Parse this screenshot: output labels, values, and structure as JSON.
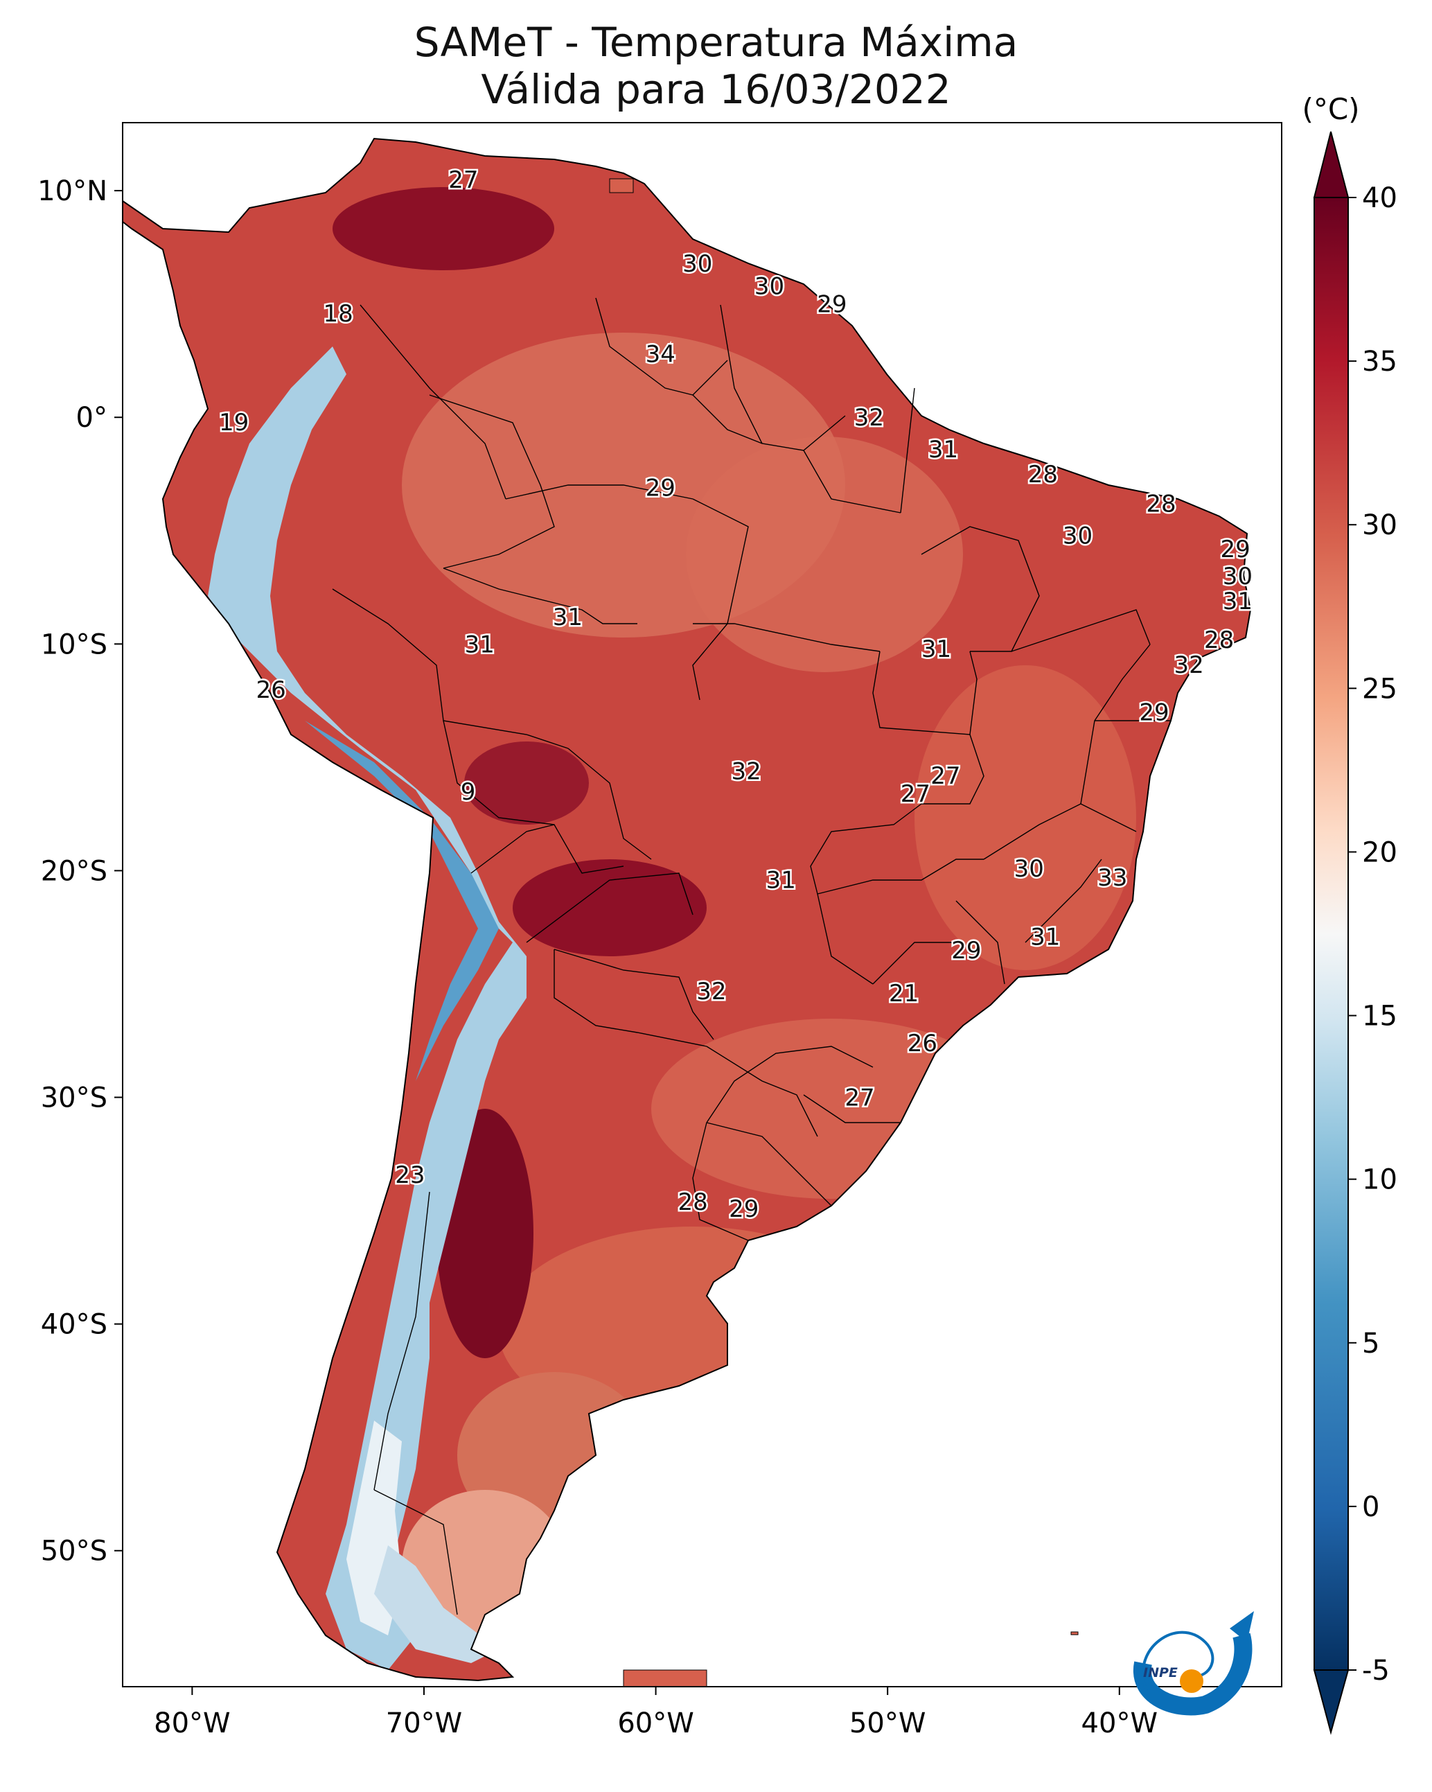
{
  "title": {
    "line1": "SAMeT - Temperatura Máxima",
    "line2": "Válida para 16/03/2022"
  },
  "axes": {
    "x_labels": [
      "80°W",
      "70°W",
      "60°W",
      "50°W",
      "40°W"
    ],
    "y_labels": [
      "10°N",
      "0°",
      "10°S",
      "20°S",
      "30°S",
      "40°S",
      "50°S"
    ]
  },
  "colorbar": {
    "unit": "(°C)",
    "ticks": [
      "40",
      "35",
      "30",
      "25",
      "20",
      "15",
      "10",
      "5",
      "0",
      "-5"
    ],
    "range": [
      -5,
      40
    ]
  },
  "logo": {
    "text": "INPE"
  },
  "colors": {
    "hot": "#67001f",
    "warm": "#c83c3c",
    "mild": "#e6806a",
    "neutral": "#f7f7f7",
    "cool": "#92c5de",
    "cold": "#053061",
    "accent_orange": "#f39200",
    "accent_blue": "#0a6fb8"
  },
  "temperature_labels": [
    {
      "value": "27",
      "lon": -68.3,
      "lat": 10.5
    },
    {
      "value": "18",
      "lon": -73.7,
      "lat": 4.6
    },
    {
      "value": "19",
      "lon": -78.2,
      "lat": -0.2
    },
    {
      "value": "30",
      "lon": -58.2,
      "lat": 6.8
    },
    {
      "value": "30",
      "lon": -55.1,
      "lat": 5.8
    },
    {
      "value": "29",
      "lon": -52.4,
      "lat": 5.0
    },
    {
      "value": "34",
      "lon": -59.8,
      "lat": 2.8
    },
    {
      "value": "32",
      "lon": -50.8,
      "lat": 0.0
    },
    {
      "value": "31",
      "lon": -47.6,
      "lat": -1.4
    },
    {
      "value": "29",
      "lon": -59.8,
      "lat": -3.1
    },
    {
      "value": "28",
      "lon": -43.3,
      "lat": -2.5
    },
    {
      "value": "28",
      "lon": -38.2,
      "lat": -3.8
    },
    {
      "value": "30",
      "lon": -41.8,
      "lat": -5.2
    },
    {
      "value": "29",
      "lon": -35.0,
      "lat": -5.8
    },
    {
      "value": "30",
      "lon": -34.9,
      "lat": -7.0
    },
    {
      "value": "31",
      "lon": -34.9,
      "lat": -8.1
    },
    {
      "value": "28",
      "lon": -35.7,
      "lat": -9.8
    },
    {
      "value": "32",
      "lon": -37.0,
      "lat": -10.9
    },
    {
      "value": "29",
      "lon": -38.5,
      "lat": -13.0
    },
    {
      "value": "31",
      "lon": -63.8,
      "lat": -8.8
    },
    {
      "value": "31",
      "lon": -67.6,
      "lat": -10.0
    },
    {
      "value": "31",
      "lon": -47.9,
      "lat": -10.2
    },
    {
      "value": "26",
      "lon": -76.6,
      "lat": -12.0
    },
    {
      "value": "27",
      "lon": -47.5,
      "lat": -15.8
    },
    {
      "value": "27",
      "lon": -48.8,
      "lat": -16.6
    },
    {
      "value": "32",
      "lon": -56.1,
      "lat": -15.6
    },
    {
      "value": "9",
      "lon": -68.1,
      "lat": -16.5
    },
    {
      "value": "30",
      "lon": -43.9,
      "lat": -19.9
    },
    {
      "value": "33",
      "lon": -40.3,
      "lat": -20.3
    },
    {
      "value": "31",
      "lon": -54.6,
      "lat": -20.4
    },
    {
      "value": "31",
      "lon": -43.2,
      "lat": -22.9
    },
    {
      "value": "29",
      "lon": -46.6,
      "lat": -23.5
    },
    {
      "value": "32",
      "lon": -57.6,
      "lat": -25.3
    },
    {
      "value": "21",
      "lon": -49.3,
      "lat": -25.4
    },
    {
      "value": "26",
      "lon": -48.5,
      "lat": -27.6
    },
    {
      "value": "27",
      "lon": -51.2,
      "lat": -30.0
    },
    {
      "value": "23",
      "lon": -70.6,
      "lat": -33.4
    },
    {
      "value": "28",
      "lon": -58.4,
      "lat": -34.6
    },
    {
      "value": "29",
      "lon": -56.2,
      "lat": -34.9
    }
  ]
}
